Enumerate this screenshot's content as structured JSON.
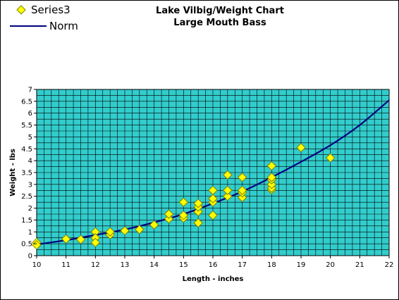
{
  "chart_data": {
    "type": "scatter",
    "title": "Lake Vilbig/Weight Chart",
    "subtitle": "Large Mouth Bass",
    "xlabel": "Length - inches",
    "ylabel": "Weight - lbs",
    "xlim": [
      10,
      22
    ],
    "ylim": [
      0,
      7
    ],
    "x_ticks": [
      "10",
      "11",
      "12",
      "13",
      "14",
      "15",
      "16",
      "17",
      "18",
      "19",
      "20",
      "21",
      "22"
    ],
    "y_ticks": [
      "0",
      "0.5",
      "1",
      "1.5",
      "2",
      "2.5",
      "3",
      "3.5",
      "4",
      "4.5",
      "5",
      "5.5",
      "6",
      "6.5",
      "7"
    ],
    "grid": true,
    "legend_position": "top-left",
    "plot_background": "#33cccc",
    "series": [
      {
        "name": "Series3",
        "kind": "scatter",
        "marker": "diamond",
        "color": "#ffff00",
        "x": [
          10,
          10,
          11,
          11.5,
          12,
          12,
          12,
          12.5,
          12.5,
          13,
          13.5,
          14,
          14.5,
          14.5,
          15,
          15,
          15,
          15.5,
          15.5,
          15.5,
          15.5,
          16,
          16,
          16,
          16,
          16.5,
          16.5,
          16.5,
          17,
          17,
          17,
          17,
          18,
          18,
          18,
          18,
          18,
          18,
          19,
          20
        ],
        "y": [
          0.55,
          0.45,
          0.7,
          0.68,
          1.0,
          0.75,
          0.55,
          0.88,
          1.0,
          1.05,
          1.1,
          1.3,
          1.55,
          1.75,
          1.58,
          1.7,
          2.25,
          1.38,
          1.85,
          2.05,
          2.2,
          1.7,
          2.25,
          2.4,
          2.75,
          2.5,
          2.75,
          3.4,
          2.45,
          2.65,
          2.75,
          3.3,
          2.78,
          2.85,
          3.0,
          3.2,
          3.3,
          3.78,
          4.55,
          4.12
        ]
      },
      {
        "name": "Norm",
        "kind": "line",
        "color": "#000080",
        "x": [
          10,
          11,
          12,
          13,
          14,
          15,
          16,
          17,
          18,
          19,
          20,
          21,
          22
        ],
        "y": [
          0.47,
          0.65,
          0.87,
          1.1,
          1.4,
          1.75,
          2.2,
          2.7,
          3.3,
          3.95,
          4.65,
          5.5,
          6.55
        ]
      }
    ]
  }
}
